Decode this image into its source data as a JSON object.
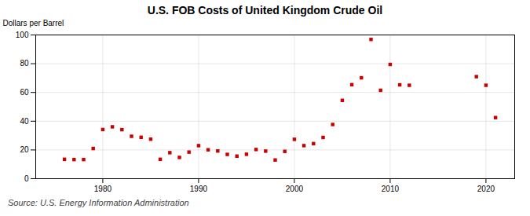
{
  "chart_data": {
    "type": "scatter",
    "title": "U.S. FOB Costs of United Kingdom Crude Oil",
    "ylabel": "Dollars per Barrel",
    "annotation": "Source: U.S. Energy Information Administration",
    "color": "#cc0000",
    "marker": "square",
    "grid": true,
    "xlim": [
      1973,
      2023
    ],
    "ylim": [
      0,
      100
    ],
    "xticks": [
      1980,
      1990,
      2000,
      2010,
      2020
    ],
    "yticks": [
      0,
      20,
      40,
      60,
      80,
      100
    ],
    "x": [
      1976,
      1977,
      1978,
      1979,
      1980,
      1981,
      1982,
      1983,
      1984,
      1985,
      1986,
      1987,
      1988,
      1989,
      1990,
      1991,
      1992,
      1993,
      1994,
      1995,
      1996,
      1997,
      1998,
      1999,
      2000,
      2001,
      2002,
      2003,
      2004,
      2005,
      2006,
      2007,
      2008,
      2009,
      2010,
      2011,
      2012,
      2019,
      2020,
      2021
    ],
    "values": [
      13.5,
      13.3,
      13.3,
      21.0,
      34.2,
      36.1,
      34.1,
      29.5,
      28.8,
      27.5,
      13.5,
      18.1,
      14.8,
      18.5,
      23.0,
      20.1,
      19.3,
      16.9,
      15.7,
      17.0,
      20.3,
      19.2,
      13.0,
      19.0,
      27.4,
      23.0,
      24.4,
      28.7,
      37.7,
      54.5,
      65.4,
      70.2,
      96.9,
      61.5,
      79.5,
      65.3,
      65.0,
      71.0,
      65.0,
      42.5
    ]
  }
}
